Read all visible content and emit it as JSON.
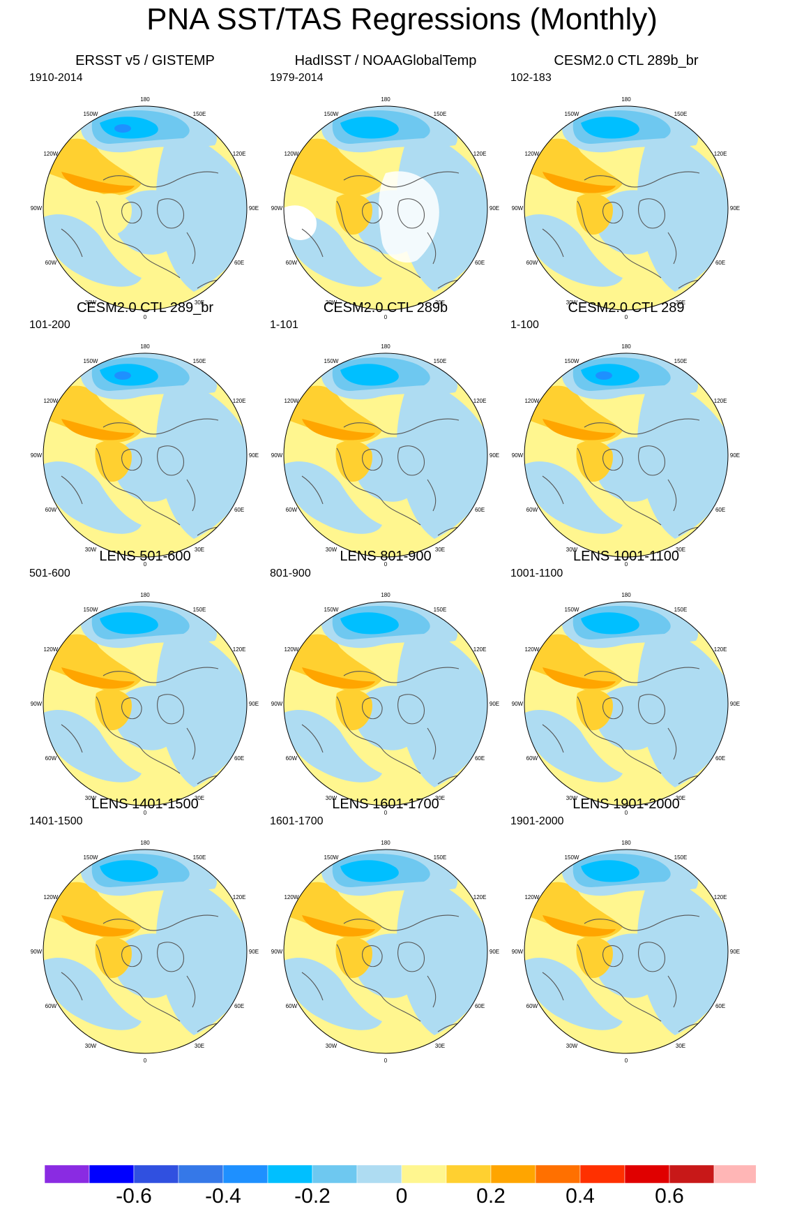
{
  "title": "PNA SST/TAS Regressions (Monthly)",
  "panels": [
    {
      "title": "ERSST v5 / GISTEMP",
      "years": "1910-2014",
      "variant": 0
    },
    {
      "title": "HadISST / NOAAGlobalTemp",
      "years": "1979-2014",
      "variant": 1
    },
    {
      "title": "CESM2.0 CTL 289b_br",
      "years": "102-183",
      "variant": 2
    },
    {
      "title": "CESM2.0 CTL 289_br",
      "years": "101-200",
      "variant": 3
    },
    {
      "title": "CESM2.0 CTL 289b",
      "years": "1-101",
      "variant": 2
    },
    {
      "title": "CESM2.0 CTL 289",
      "years": "1-100",
      "variant": 3
    },
    {
      "title": "LENS 501-600",
      "years": "501-600",
      "variant": 4
    },
    {
      "title": "LENS 801-900",
      "years": "801-900",
      "variant": 4
    },
    {
      "title": "LENS 1001-1100",
      "years": "1001-1100",
      "variant": 4
    },
    {
      "title": "LENS 1401-1500",
      "years": "1401-1500",
      "variant": 4
    },
    {
      "title": "LENS 1601-1700",
      "years": "1601-1700",
      "variant": 4
    },
    {
      "title": "LENS 1901-2000",
      "years": "1901-2000",
      "variant": 5
    }
  ],
  "longitude_labels": [
    "180",
    "150E",
    "120E",
    "90E",
    "60E",
    "30E",
    "0",
    "30W",
    "60W",
    "90W",
    "120W",
    "150W"
  ],
  "colorbar": {
    "colors": [
      "#8a2be2",
      "#0000ff",
      "#3050e0",
      "#3578e8",
      "#1e90ff",
      "#00bfff",
      "#6ec8f0",
      "#aedcf2",
      "#fff68f",
      "#ffd030",
      "#ffa500",
      "#ff7000",
      "#ff3000",
      "#e00000",
      "#c81818",
      "#ffb6b6"
    ],
    "labels": [
      "-0.6",
      "-0.4",
      "-0.2",
      "0",
      "0.2",
      "0.4",
      "0.6"
    ]
  },
  "field_colors": {
    "light_blue": "#aedcf2",
    "mid_blue": "#6ec8f0",
    "strong_blue": "#00bfff",
    "core_blue": "#1e90ff",
    "yellow": "#fff68f",
    "gold": "#ffd030",
    "orange": "#ffa500",
    "dark_orange": "#ff7000",
    "missing": "#ffffff",
    "coast": "#555555"
  }
}
